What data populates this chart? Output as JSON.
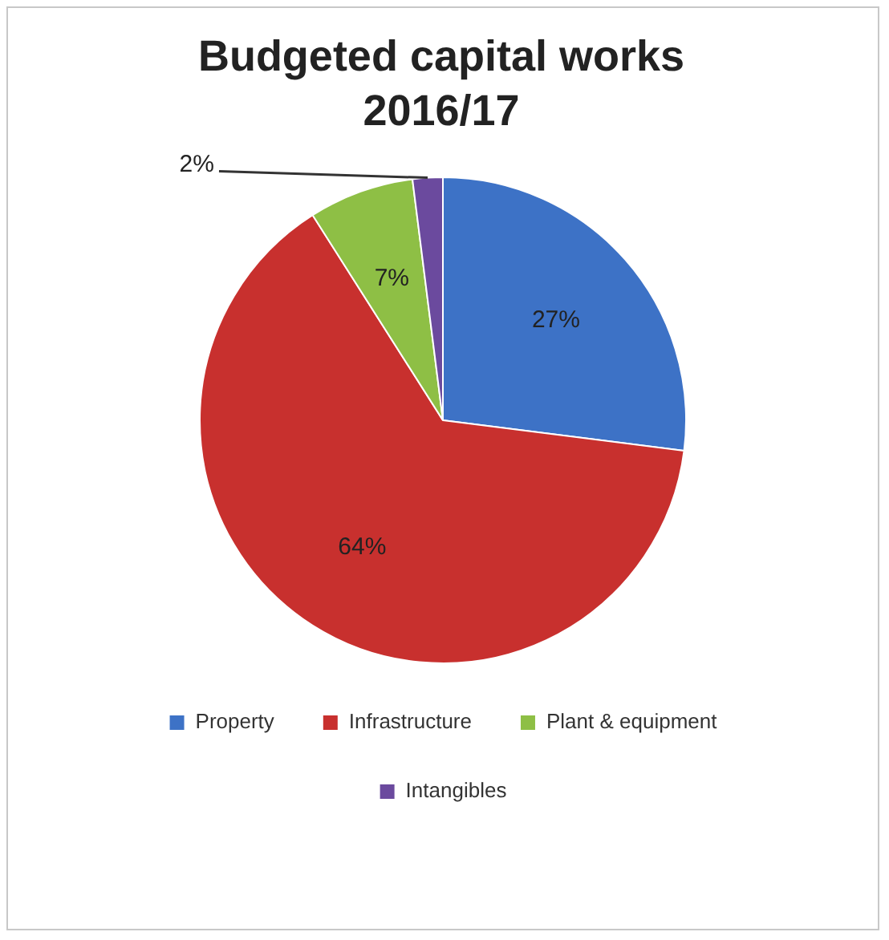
{
  "chart_data": {
    "type": "pie",
    "title": "Budgeted capital works 2016/17",
    "categories": [
      "Property",
      "Infrastructure",
      "Plant & equipment",
      "Intangibles"
    ],
    "values": [
      27,
      64,
      7,
      2
    ],
    "colors": [
      "#3d72c6",
      "#c8302e",
      "#8ebf45",
      "#6b4a9e"
    ],
    "value_labels": [
      "27%",
      "64%",
      "7%",
      "2%"
    ],
    "legend": "bottom"
  }
}
